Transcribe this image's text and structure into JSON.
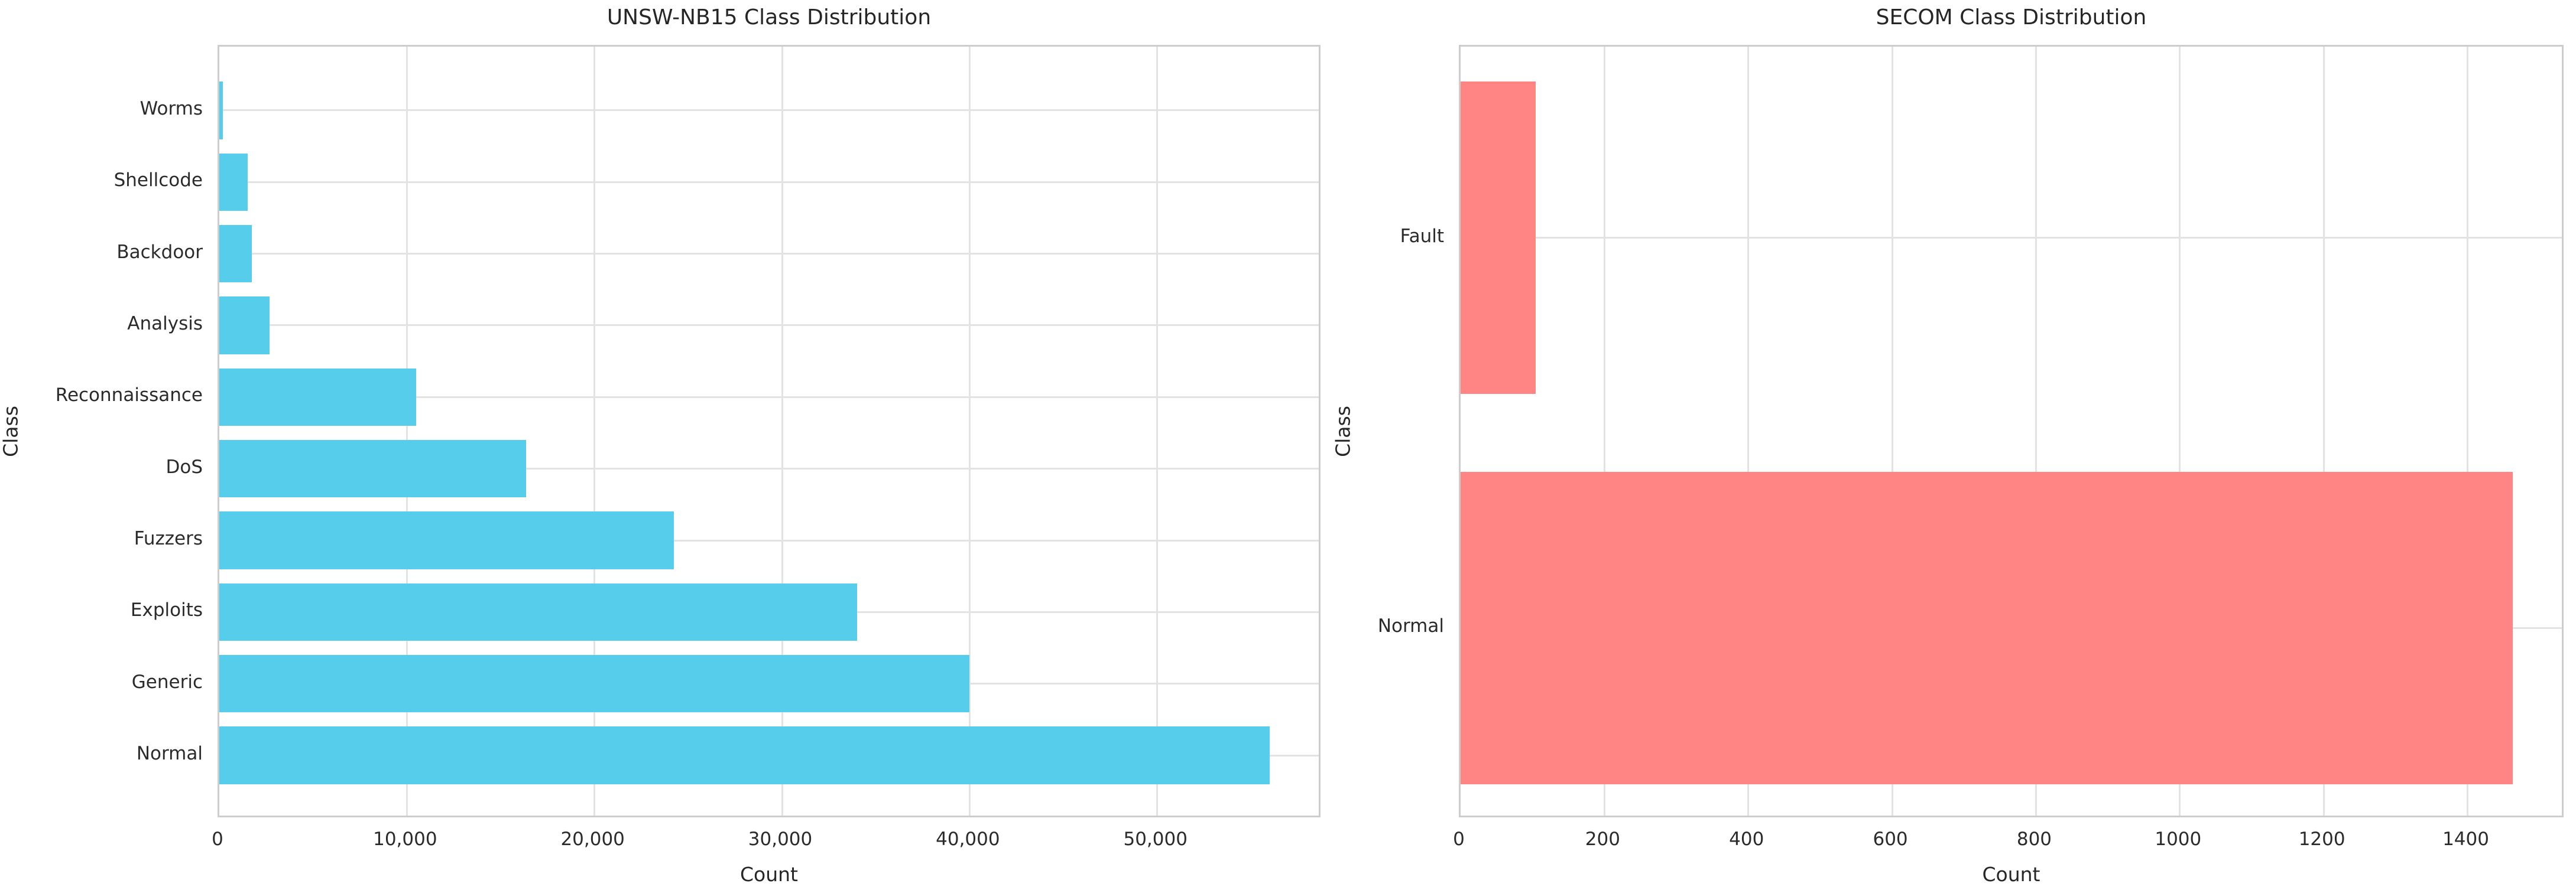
{
  "figure": {
    "background_color": "#FFFFFF",
    "grid_color": "#E3E3E3",
    "border_color": "#CDCDCD",
    "text_color": "#262626"
  },
  "chart_data": [
    {
      "type": "bar",
      "orientation": "horizontal",
      "title": "UNSW-NB15 Class Distribution",
      "xlabel": "Count",
      "ylabel": "Class",
      "categories": [
        "Worms",
        "Shellcode",
        "Backdoor",
        "Analysis",
        "Reconnaissance",
        "DoS",
        "Fuzzers",
        "Exploits",
        "Generic",
        "Normal"
      ],
      "values": [
        174,
        1511,
        1746,
        2677,
        10491,
        16353,
        24246,
        34000,
        40000,
        56000
      ],
      "bar_color": "#57CDEC",
      "xlim": [
        0,
        58800
      ],
      "x_ticks": [
        0,
        10000,
        20000,
        30000,
        40000,
        50000
      ],
      "x_tick_labels": [
        "0",
        "10,000",
        "20,000",
        "30,000",
        "40,000",
        "50,000"
      ],
      "grid": true,
      "legend_position": "none"
    },
    {
      "type": "bar",
      "orientation": "horizontal",
      "title": "SECOM Class Distribution",
      "xlabel": "Count",
      "ylabel": "Class",
      "categories": [
        "Fault",
        "Normal"
      ],
      "values": [
        104,
        1463
      ],
      "bar_color": "#FF8585",
      "xlim": [
        0,
        1536
      ],
      "x_ticks": [
        0,
        200,
        400,
        600,
        800,
        1000,
        1200,
        1400
      ],
      "x_tick_labels": [
        "0",
        "200",
        "400",
        "600",
        "800",
        "1000",
        "1200",
        "1400"
      ],
      "grid": true,
      "legend_position": "none"
    }
  ]
}
